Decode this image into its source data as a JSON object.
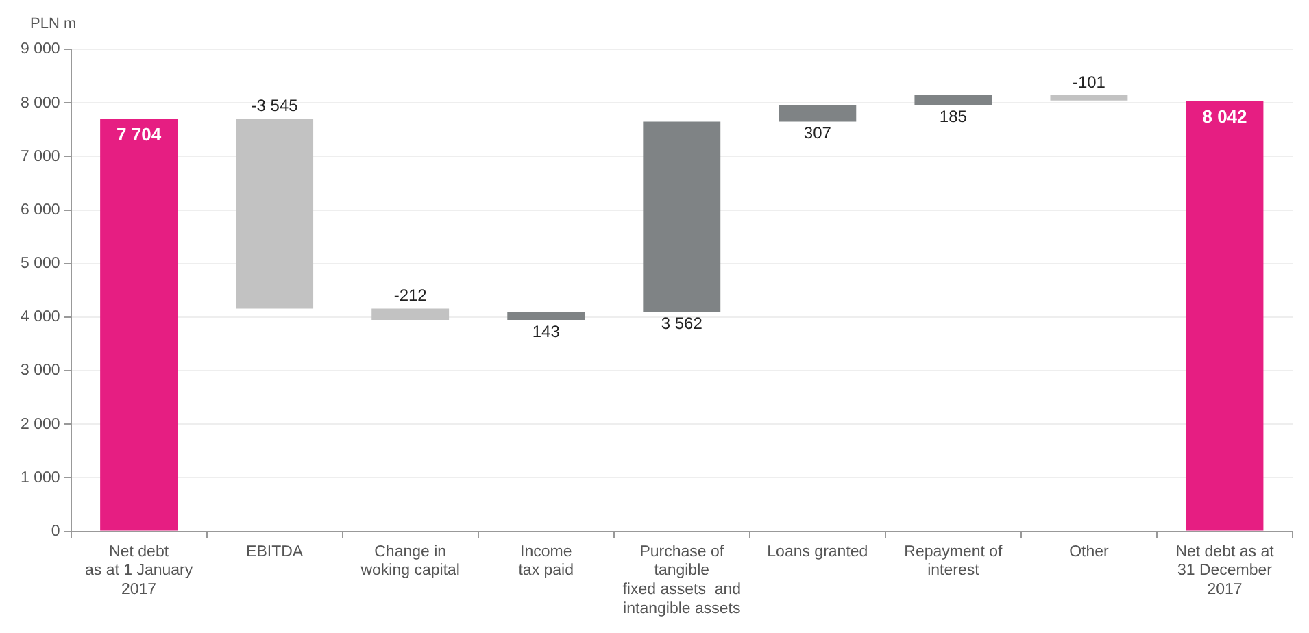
{
  "chart_data": {
    "type": "bar",
    "ylabel": "PLN m",
    "categories": [
      "Net debt\nas at 1 January\n2017",
      "EBITDA",
      "Change in\nwoking capital",
      "Income\ntax paid",
      "Purchase of\ntangible\nfixed assets  and\nintangible assets",
      "Loans granted",
      "Repayment of\ninterest",
      "Other",
      "Net debt as at\n31 December\n2017"
    ],
    "values": [
      7704,
      -3545,
      -212,
      143,
      3562,
      307,
      185,
      -101,
      8042
    ],
    "base": [
      0,
      7704,
      4159,
      3947,
      4090,
      7652,
      7959,
      8144,
      0
    ],
    "colors": [
      "#e61e82",
      "#c2c2c2",
      "#c2c2c2",
      "#7f8385",
      "#7f8385",
      "#7f8385",
      "#7f8385",
      "#c2c2c2",
      "#e61e82"
    ],
    "value_labels": [
      "7 704",
      "-3 545",
      "-212",
      "143",
      "3 562",
      "307",
      "185",
      "-101",
      "8 042"
    ],
    "ylim": [
      0,
      9000
    ],
    "yticks": [
      {
        "value": 0,
        "label": "0"
      },
      {
        "value": 1000,
        "label": "1 000"
      },
      {
        "value": 2000,
        "label": "2 000"
      },
      {
        "value": 3000,
        "label": "3 000"
      },
      {
        "value": 4000,
        "label": "4 000"
      },
      {
        "value": 5000,
        "label": "5 000"
      },
      {
        "value": 6000,
        "label": "6 000"
      },
      {
        "value": 7000,
        "label": "7 000"
      },
      {
        "value": 8000,
        "label": "8 000"
      },
      {
        "value": 9000,
        "label": "9 000"
      }
    ],
    "grid": "y",
    "legend": false
  }
}
